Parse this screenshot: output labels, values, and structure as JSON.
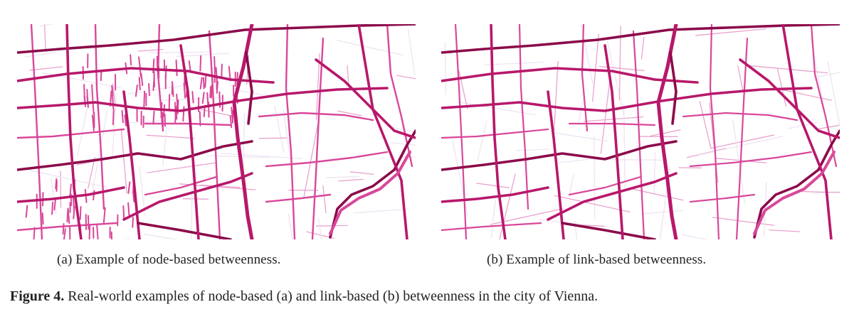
{
  "figure": {
    "label": "Figure 4.",
    "caption": "Real-world examples of node-based (a) and link-based (b) betweenness in the city of Vienna."
  },
  "panels": [
    {
      "id": "a",
      "caption": "(a)  Example of node-based betweenness."
    },
    {
      "id": "b",
      "caption": "(b)  Example of link-based betweenness."
    }
  ],
  "colors": {
    "very_high": "#8c0a4a",
    "high": "#b8186b",
    "medium": "#d9479a",
    "low": "#e9a3cf",
    "very_low": "#eee4f2"
  }
}
